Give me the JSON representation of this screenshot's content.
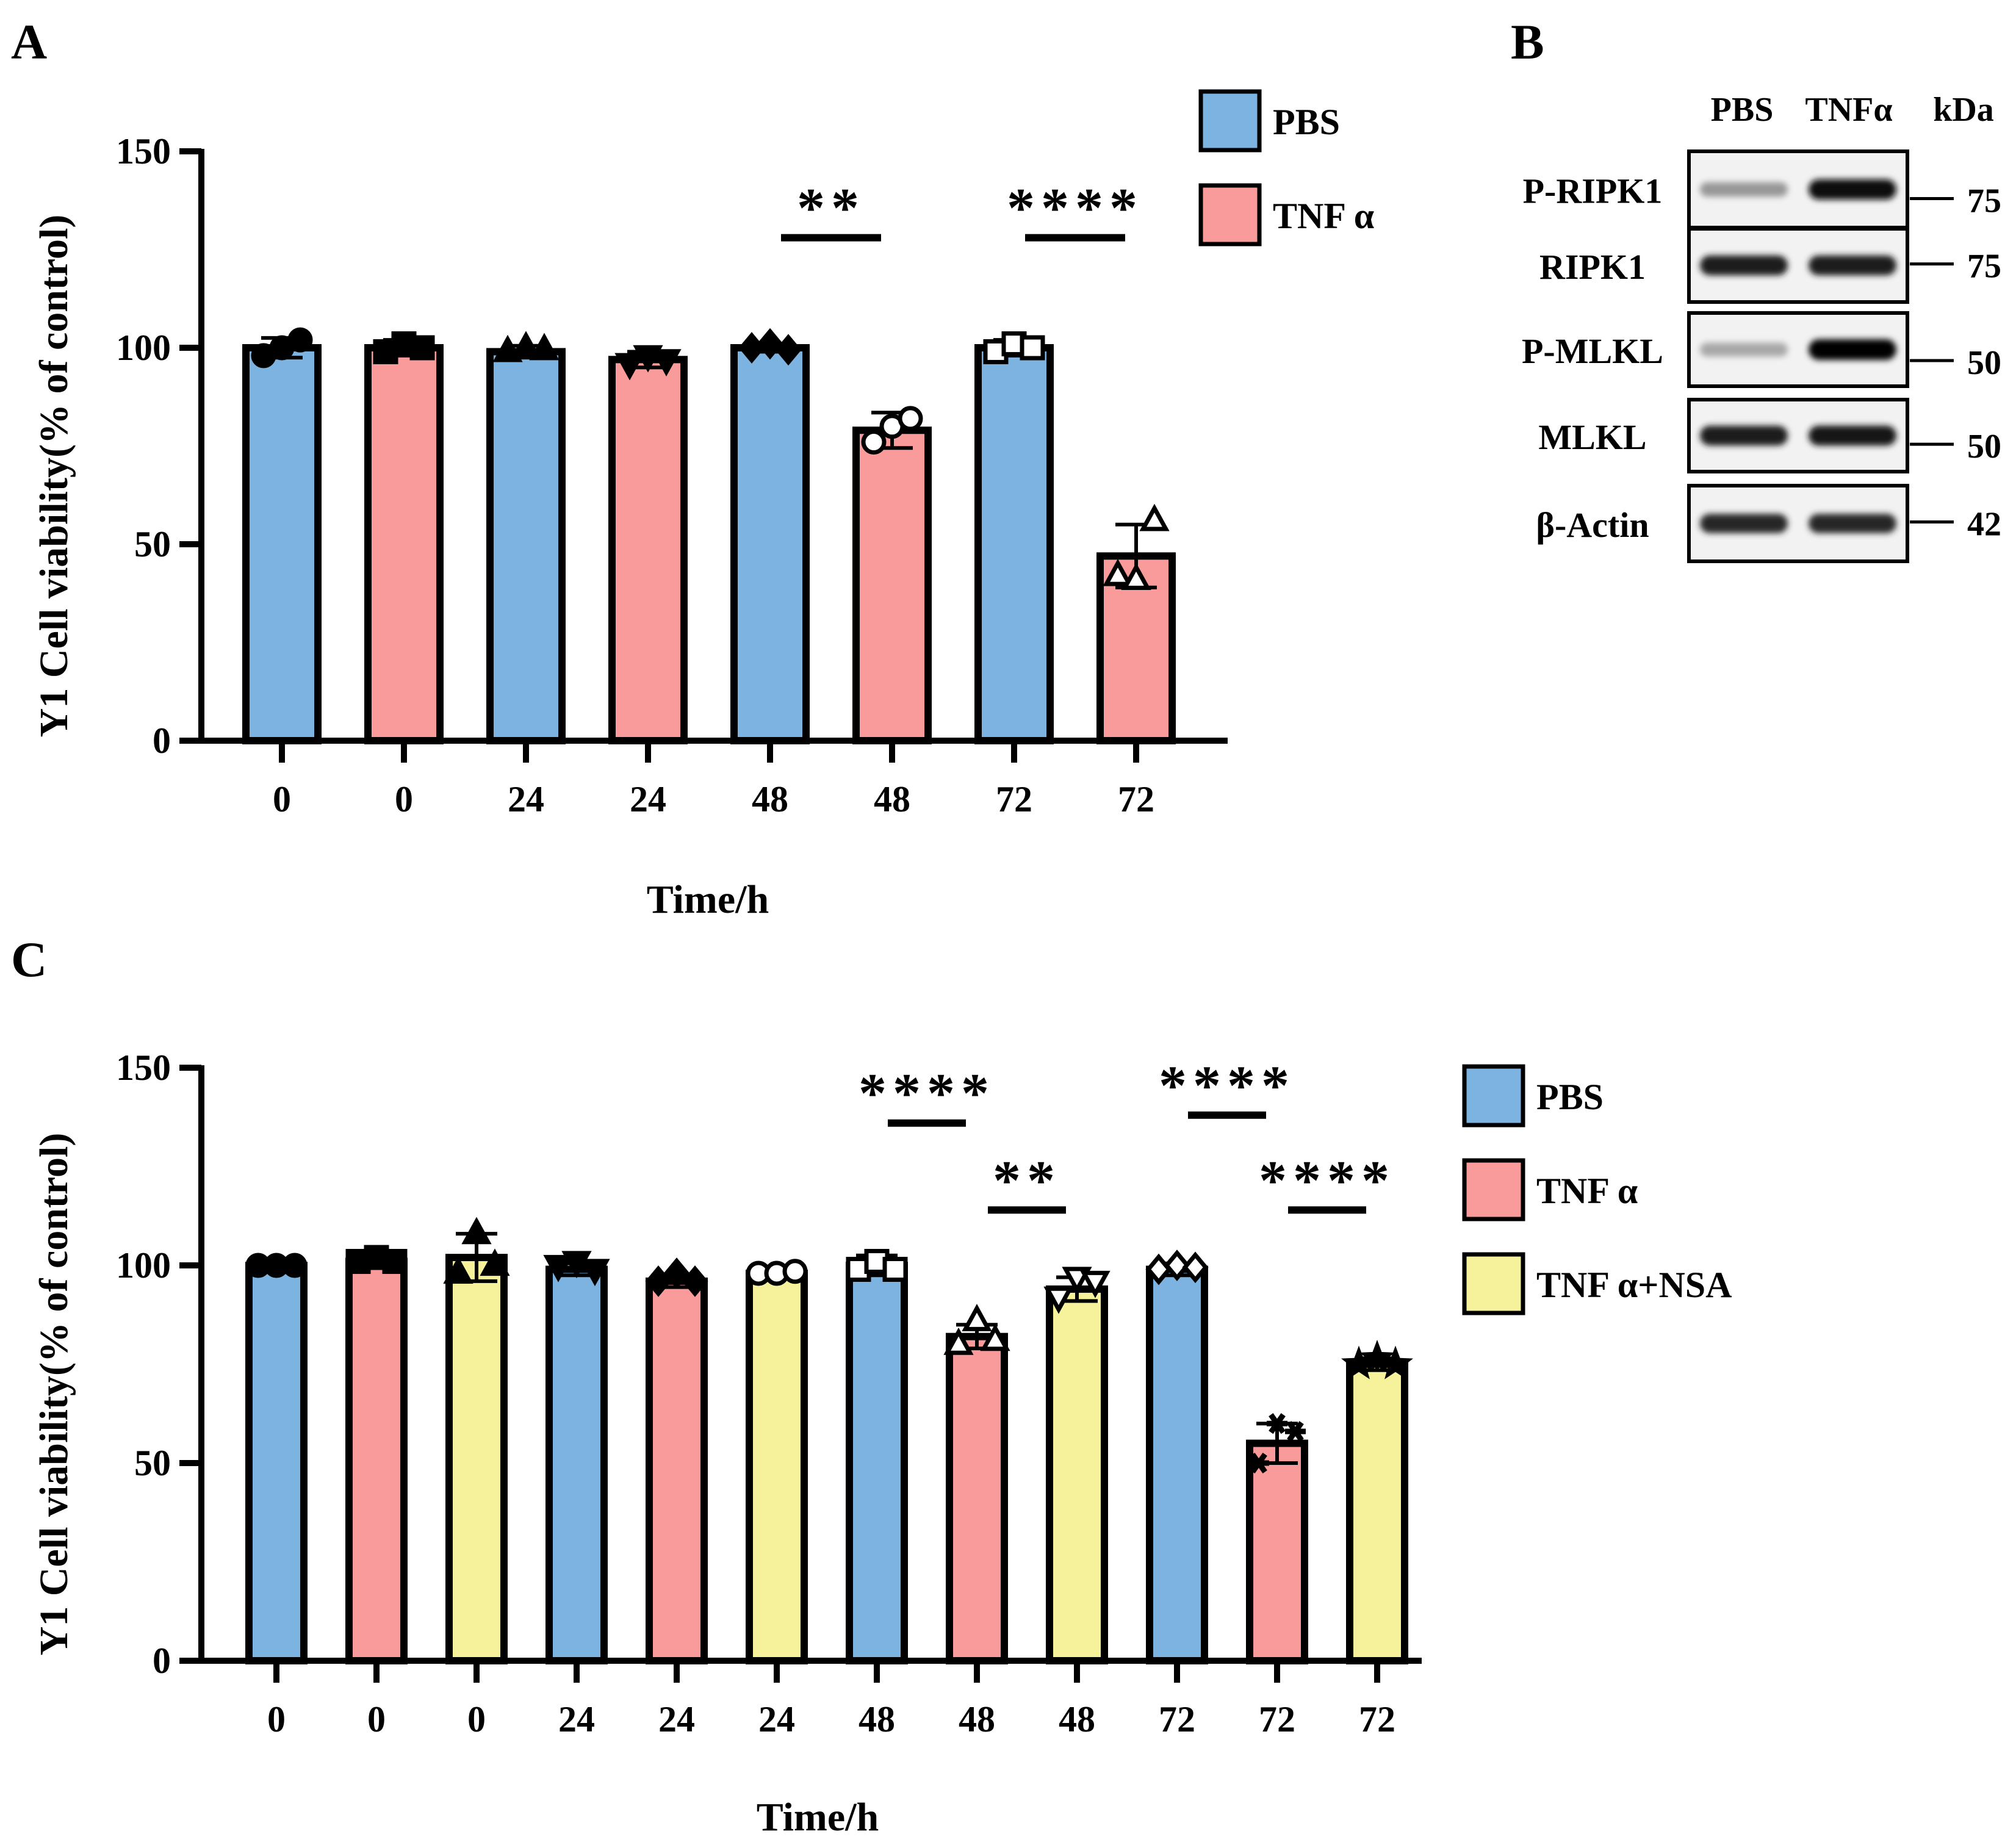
{
  "panels": {
    "a": {
      "letter": "A"
    },
    "b": {
      "letter": "B"
    },
    "c": {
      "letter": "C"
    }
  },
  "colors": {
    "pbs": "#7cb3e0",
    "tnf": "#f99b9b",
    "tnf_nsa": "#f6f29b",
    "axis": "#000000"
  },
  "chart_data": [
    {
      "panel": "A",
      "type": "bar",
      "ylabel": "Y1 Cell viability(% of control)",
      "xlabel": "Time/h",
      "ylim": [
        0,
        150
      ],
      "yticks": [
        "0",
        "50",
        "100",
        "150"
      ],
      "categories": [
        "0",
        "0",
        "24",
        "24",
        "48",
        "48",
        "72",
        "72"
      ],
      "series_names": [
        "PBS",
        "TNF α"
      ],
      "bar_groups": [
        "PBS",
        "TNF α",
        "PBS",
        "TNF α",
        "PBS",
        "TNF α",
        "PBS",
        "TNF α"
      ],
      "values": [
        100,
        100,
        99,
        97,
        100,
        79,
        100,
        47
      ],
      "errors": [
        2.5,
        2,
        1.5,
        2,
        1,
        4.5,
        2,
        8
      ],
      "markers": [
        "circle",
        "square",
        "triangle",
        "tri-down",
        "diamond",
        "open-circle",
        "open-square",
        "open-triangle"
      ],
      "points": [
        [
          98,
          100,
          102
        ],
        [
          99,
          101,
          100
        ],
        [
          99,
          100,
          99.5
        ],
        [
          96,
          98,
          97
        ],
        [
          100,
          101,
          99.5
        ],
        [
          76,
          80,
          82
        ],
        [
          99,
          101,
          100
        ],
        [
          42,
          41,
          56
        ]
      ],
      "significance": [
        {
          "label": "**",
          "from": 4,
          "to": 5,
          "y": 128
        },
        {
          "label": "****",
          "from": 6,
          "to": 7,
          "y": 128
        }
      ],
      "legend": [
        "PBS",
        "TNF α"
      ]
    },
    {
      "panel": "C",
      "type": "bar",
      "ylabel": "Y1 Cell viability(% of control)",
      "xlabel": "Time/h",
      "ylim": [
        0,
        150
      ],
      "yticks": [
        "0",
        "50",
        "100",
        "150"
      ],
      "categories": [
        "0",
        "0",
        "0",
        "24",
        "24",
        "24",
        "48",
        "48",
        "48",
        "72",
        "72",
        "72"
      ],
      "series_names": [
        "PBS",
        "TNF α",
        "TNF α+NSA"
      ],
      "bar_groups": [
        "PBS",
        "TNF α",
        "TNF α+NSA",
        "PBS",
        "TNF α",
        "TNF α+NSA",
        "PBS",
        "TNF α",
        "TNF α+NSA",
        "PBS",
        "TNF α",
        "TNF α+NSA"
      ],
      "values": [
        100,
        101,
        102,
        99,
        96,
        98,
        100,
        82,
        94,
        99,
        55,
        75
      ],
      "errors": [
        0.5,
        1,
        6,
        1.5,
        1.5,
        0.5,
        2.5,
        3,
        3,
        1.5,
        5,
        1.5
      ],
      "markers": [
        "circle",
        "square",
        "triangle",
        "tri-down",
        "diamond",
        "open-circle",
        "open-square",
        "open-triangle",
        "open-tri-down",
        "open-diamond",
        "asterisk",
        "star"
      ],
      "points": [
        [
          100,
          100,
          100
        ],
        [
          101,
          102,
          101
        ],
        [
          98,
          108,
          100
        ],
        [
          100,
          101,
          99
        ],
        [
          96,
          98,
          96
        ],
        [
          98,
          98,
          98.5
        ],
        [
          99,
          101,
          99
        ],
        [
          80,
          86,
          81
        ],
        [
          92,
          97,
          96
        ],
        [
          99,
          100,
          99.5
        ],
        [
          50,
          60,
          58
        ],
        [
          75,
          76.5,
          75
        ]
      ],
      "significance": [
        {
          "label": "****",
          "from": 6,
          "to": 7,
          "y": 136
        },
        {
          "label": "**",
          "from": 7,
          "to": 8,
          "y": 114
        },
        {
          "label": "****",
          "from": 9,
          "to": 10,
          "y": 138
        },
        {
          "label": "****",
          "from": 10,
          "to": 11,
          "y": 114
        }
      ],
      "legend": [
        "PBS",
        "TNF α",
        "TNF α+NSA"
      ]
    }
  ],
  "blot": {
    "lanes": [
      "PBS",
      "TNFα"
    ],
    "kda_header": "kDa",
    "rows": [
      {
        "label": "P-RIPK1",
        "kda": "75",
        "intensity": [
          0.35,
          0.95
        ]
      },
      {
        "label": "RIPK1",
        "kda": "75",
        "intensity": [
          0.9,
          0.9
        ]
      },
      {
        "label": "P-MLKL",
        "kda": "50",
        "intensity": [
          0.28,
          1.0
        ]
      },
      {
        "label": "MLKL",
        "kda": "50",
        "intensity": [
          0.9,
          0.92
        ]
      },
      {
        "label": "β-Actin",
        "kda": "42",
        "intensity": [
          0.85,
          0.85
        ]
      }
    ]
  }
}
